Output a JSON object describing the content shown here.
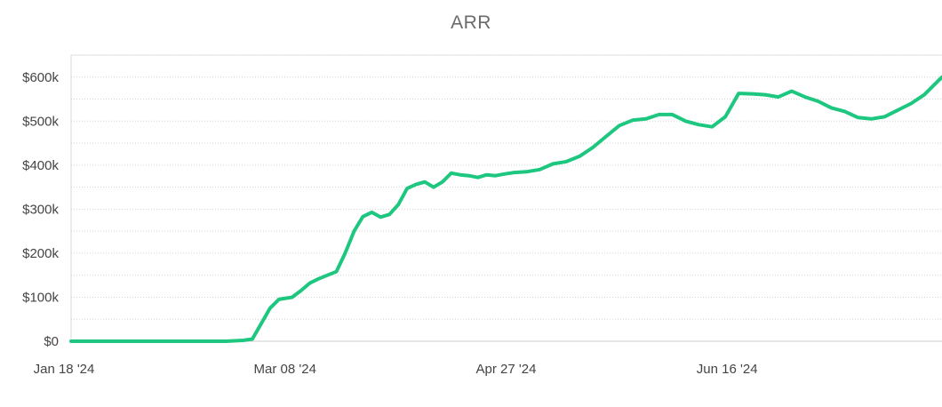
{
  "chart_data": {
    "type": "line",
    "title": "ARR",
    "xlabel": "",
    "ylabel": "",
    "x_ticks": [
      "Jan 18 '24",
      "Mar 08 '24",
      "Apr 27 '24",
      "Jun 16 '24"
    ],
    "y_ticks": [
      "$0",
      "$100k",
      "$200k",
      "$300k",
      "$400k",
      "$500k",
      "$600k"
    ],
    "y_tick_values": [
      0,
      100000,
      200000,
      300000,
      400000,
      500000,
      600000
    ],
    "ylim": [
      0,
      650000
    ],
    "xlim": [
      "2024-01-18",
      "2024-08-02"
    ],
    "grid": true,
    "line_color": "#1ec77f",
    "series": [
      {
        "x": [
          "2024-01-18",
          "2024-01-25",
          "2024-02-01",
          "2024-02-08",
          "2024-02-15",
          "2024-02-22",
          "2024-02-26",
          "2024-02-28",
          "2024-03-01",
          "2024-03-03",
          "2024-03-05",
          "2024-03-08",
          "2024-03-10",
          "2024-03-12",
          "2024-03-14",
          "2024-03-16",
          "2024-03-18",
          "2024-03-20",
          "2024-03-22",
          "2024-03-24",
          "2024-03-26",
          "2024-03-28",
          "2024-03-30",
          "2024-04-01",
          "2024-04-03",
          "2024-04-05",
          "2024-04-07",
          "2024-04-09",
          "2024-04-11",
          "2024-04-13",
          "2024-04-15",
          "2024-04-17",
          "2024-04-19",
          "2024-04-21",
          "2024-04-23",
          "2024-04-25",
          "2024-04-27",
          "2024-04-30",
          "2024-05-03",
          "2024-05-06",
          "2024-05-09",
          "2024-05-12",
          "2024-05-15",
          "2024-05-18",
          "2024-05-21",
          "2024-05-24",
          "2024-05-27",
          "2024-05-30",
          "2024-06-02",
          "2024-06-05",
          "2024-06-08",
          "2024-06-11",
          "2024-06-14",
          "2024-06-17",
          "2024-06-20",
          "2024-06-23",
          "2024-06-26",
          "2024-06-29",
          "2024-07-02",
          "2024-07-05",
          "2024-07-08",
          "2024-07-11",
          "2024-07-14",
          "2024-07-17",
          "2024-07-20",
          "2024-07-23",
          "2024-07-26",
          "2024-07-29",
          "2024-08-01",
          "2024-08-02"
        ],
        "values": [
          0,
          0,
          0,
          0,
          0,
          0,
          2000,
          5000,
          40000,
          75000,
          95000,
          100000,
          115000,
          132000,
          142000,
          150000,
          158000,
          200000,
          250000,
          283000,
          293000,
          282000,
          288000,
          310000,
          347000,
          356000,
          362000,
          350000,
          362000,
          382000,
          378000,
          376000,
          372000,
          378000,
          376000,
          380000,
          383000,
          385000,
          390000,
          403000,
          408000,
          420000,
          440000,
          465000,
          490000,
          502000,
          505000,
          515000,
          515000,
          500000,
          492000,
          487000,
          510000,
          563000,
          562000,
          560000,
          555000,
          568000,
          555000,
          545000,
          530000,
          522000,
          508000,
          505000,
          510000,
          525000,
          540000,
          560000,
          590000,
          600000
        ]
      }
    ]
  }
}
